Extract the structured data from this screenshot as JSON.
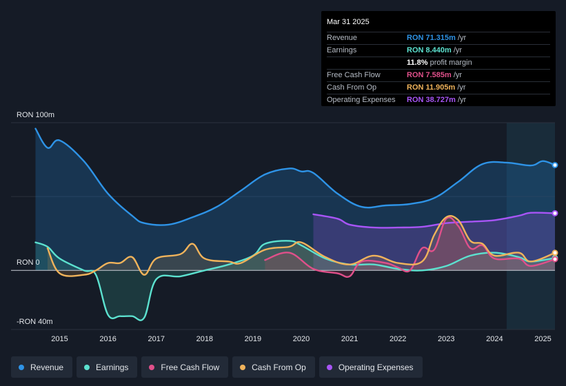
{
  "tooltip": {
    "date": "Mar 31 2025",
    "rows": [
      {
        "label": "Revenue",
        "value": "RON 71.315m",
        "unit": "/yr",
        "color": "#2e93e6"
      },
      {
        "label": "Earnings",
        "value": "RON 8.440m",
        "unit": "/yr",
        "color": "#5ce1cf"
      },
      {
        "label": "",
        "value": "11.8%",
        "unit": "profit margin",
        "color": "#ffffff"
      },
      {
        "label": "Free Cash Flow",
        "value": "RON 7.585m",
        "unit": "/yr",
        "color": "#e0508a"
      },
      {
        "label": "Cash From Op",
        "value": "RON 11.905m",
        "unit": "/yr",
        "color": "#f0b35b"
      },
      {
        "label": "Operating Expenses",
        "value": "RON 38.727m",
        "unit": "/yr",
        "color": "#a855f7"
      }
    ]
  },
  "legend": [
    {
      "label": "Revenue",
      "color": "#2e93e6"
    },
    {
      "label": "Earnings",
      "color": "#5ce1cf"
    },
    {
      "label": "Free Cash Flow",
      "color": "#e0508a"
    },
    {
      "label": "Cash From Op",
      "color": "#f0b35b"
    },
    {
      "label": "Operating Expenses",
      "color": "#a855f7"
    }
  ],
  "chart_data": {
    "type": "area",
    "ylabel_top": "RON 100m",
    "ylabel_zero": "RON 0",
    "ylabel_bottom": "-RON 40m",
    "ylim": [
      -40,
      100
    ],
    "xlim": [
      2014.45,
      2025.25
    ],
    "highlight_start": 2024.25,
    "x_ticks": [
      {
        "label": "2015",
        "x": 2015.0
      },
      {
        "label": "2016",
        "x": 2016.0
      },
      {
        "label": "2017",
        "x": 2017.0
      },
      {
        "label": "2018",
        "x": 2018.0
      },
      {
        "label": "2019",
        "x": 2019.0
      },
      {
        "label": "2020",
        "x": 2020.0
      },
      {
        "label": "2021",
        "x": 2021.0
      },
      {
        "label": "2022",
        "x": 2022.0
      },
      {
        "label": "2023",
        "x": 2023.0
      },
      {
        "label": "2024",
        "x": 2024.0
      },
      {
        "label": "2025",
        "x": 2025.0
      }
    ],
    "series": [
      {
        "name": "Revenue",
        "color": "#2e93e6",
        "fill": "rgba(30,110,175,0.32)",
        "points": [
          [
            2014.5,
            96
          ],
          [
            2014.75,
            83
          ],
          [
            2015.0,
            88
          ],
          [
            2015.5,
            74
          ],
          [
            2016.0,
            52
          ],
          [
            2016.5,
            37
          ],
          [
            2016.75,
            32
          ],
          [
            2017.25,
            31
          ],
          [
            2017.75,
            36
          ],
          [
            2018.25,
            43
          ],
          [
            2018.75,
            54
          ],
          [
            2019.25,
            65
          ],
          [
            2019.75,
            69
          ],
          [
            2020.0,
            67
          ],
          [
            2020.25,
            66
          ],
          [
            2020.75,
            52
          ],
          [
            2021.25,
            43
          ],
          [
            2021.75,
            44
          ],
          [
            2022.25,
            45
          ],
          [
            2022.75,
            49
          ],
          [
            2023.25,
            60
          ],
          [
            2023.75,
            72
          ],
          [
            2024.25,
            73
          ],
          [
            2024.75,
            71
          ],
          [
            2025.0,
            74
          ],
          [
            2025.25,
            71.3
          ]
        ]
      },
      {
        "name": "Operating Expenses",
        "color": "#a855f7",
        "fill": "rgba(140,80,210,0.28)",
        "points": [
          [
            2020.25,
            38
          ],
          [
            2020.75,
            35
          ],
          [
            2021.0,
            31
          ],
          [
            2021.5,
            29
          ],
          [
            2022.0,
            29
          ],
          [
            2022.5,
            29.5
          ],
          [
            2023.0,
            32
          ],
          [
            2023.5,
            33
          ],
          [
            2024.0,
            34
          ],
          [
            2024.5,
            37
          ],
          [
            2024.75,
            39
          ],
          [
            2025.25,
            38.7
          ]
        ]
      },
      {
        "name": "Earnings",
        "color": "#5ce1cf",
        "fill": "rgba(60,180,160,0.20)",
        "points": [
          [
            2014.5,
            19
          ],
          [
            2014.75,
            16
          ],
          [
            2015.0,
            8
          ],
          [
            2015.5,
            0
          ],
          [
            2015.75,
            -3
          ],
          [
            2016.0,
            -30
          ],
          [
            2016.25,
            -31
          ],
          [
            2016.5,
            -31
          ],
          [
            2016.75,
            -32
          ],
          [
            2017.0,
            -6
          ],
          [
            2017.5,
            -4
          ],
          [
            2018.0,
            0
          ],
          [
            2018.5,
            4
          ],
          [
            2019.0,
            10
          ],
          [
            2019.25,
            18
          ],
          [
            2019.75,
            20
          ],
          [
            2020.0,
            17
          ],
          [
            2020.5,
            8
          ],
          [
            2021.0,
            4
          ],
          [
            2021.5,
            4
          ],
          [
            2022.0,
            1
          ],
          [
            2022.5,
            0
          ],
          [
            2023.0,
            3
          ],
          [
            2023.5,
            10
          ],
          [
            2024.0,
            12
          ],
          [
            2024.5,
            9
          ],
          [
            2024.75,
            6
          ],
          [
            2025.25,
            8.4
          ]
        ]
      },
      {
        "name": "Free Cash Flow",
        "color": "#e0508a",
        "fill": "rgba(190,60,100,0.22)",
        "points": [
          [
            2019.25,
            7
          ],
          [
            2019.75,
            12
          ],
          [
            2020.25,
            1
          ],
          [
            2020.75,
            -2
          ],
          [
            2021.0,
            -4
          ],
          [
            2021.25,
            6
          ],
          [
            2021.75,
            5
          ],
          [
            2022.0,
            2
          ],
          [
            2022.25,
            0
          ],
          [
            2022.5,
            15
          ],
          [
            2022.75,
            14
          ],
          [
            2023.0,
            35
          ],
          [
            2023.25,
            30
          ],
          [
            2023.5,
            15
          ],
          [
            2023.75,
            17
          ],
          [
            2024.0,
            8
          ],
          [
            2024.5,
            8
          ],
          [
            2024.75,
            3
          ],
          [
            2025.25,
            7.6
          ]
        ]
      },
      {
        "name": "Cash From Op",
        "color": "#f0b35b",
        "fill": "rgba(210,150,70,0.18)",
        "points": [
          [
            2014.75,
            15
          ],
          [
            2015.0,
            -2
          ],
          [
            2015.5,
            -3
          ],
          [
            2015.75,
            0
          ],
          [
            2016.0,
            5
          ],
          [
            2016.25,
            5
          ],
          [
            2016.5,
            9
          ],
          [
            2016.75,
            -3
          ],
          [
            2017.0,
            8
          ],
          [
            2017.5,
            11
          ],
          [
            2017.75,
            18
          ],
          [
            2018.0,
            8
          ],
          [
            2018.5,
            6
          ],
          [
            2018.75,
            5
          ],
          [
            2019.25,
            14
          ],
          [
            2019.75,
            16
          ],
          [
            2020.0,
            19
          ],
          [
            2020.5,
            9
          ],
          [
            2021.0,
            4
          ],
          [
            2021.5,
            10
          ],
          [
            2022.0,
            5
          ],
          [
            2022.5,
            6
          ],
          [
            2022.75,
            24
          ],
          [
            2023.0,
            36
          ],
          [
            2023.25,
            34
          ],
          [
            2023.5,
            20
          ],
          [
            2023.75,
            18
          ],
          [
            2024.0,
            10
          ],
          [
            2024.5,
            12
          ],
          [
            2024.75,
            6
          ],
          [
            2025.25,
            11.9
          ]
        ]
      }
    ]
  }
}
